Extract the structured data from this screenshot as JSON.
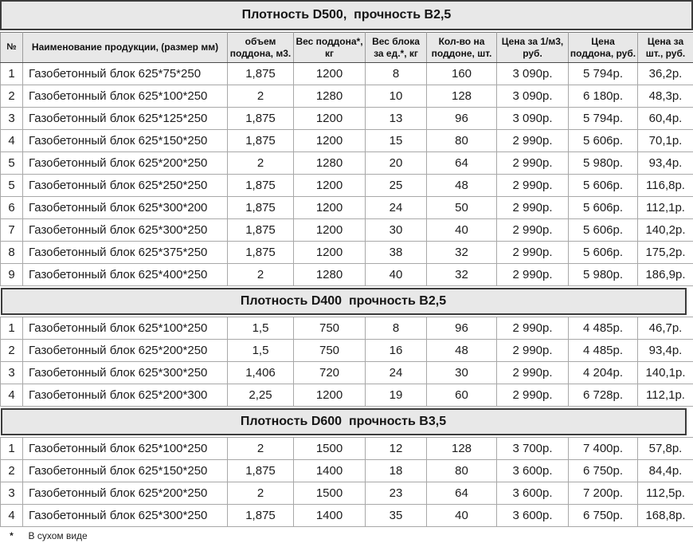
{
  "columns": [
    "№",
    "Наименование продукции, (размер мм)",
    "объем поддона, м3.",
    "Вес поддона*, кг",
    "Вес блока за ед.*, кг",
    "Кол-во на поддоне, шт.",
    "Цена за 1/м3, руб.",
    "Цена поддона, руб.",
    "Цена за шт., руб."
  ],
  "sections": [
    {
      "title": "Плотность D500,  прочность В2,5",
      "rows": [
        {
          "num": "1",
          "name": "Газобетонный блок 625*75*250",
          "volume": "1,875",
          "pallet_weight": "1200",
          "unit_weight": "8",
          "qty_per_pallet": "160",
          "price_m3": "3 090р.",
          "price_pallet": "5 794р.",
          "price_unit": "36,2р."
        },
        {
          "num": "2",
          "name": "Газобетонный блок 625*100*250",
          "volume": "2",
          "pallet_weight": "1280",
          "unit_weight": "10",
          "qty_per_pallet": "128",
          "price_m3": "3 090р.",
          "price_pallet": "6 180р.",
          "price_unit": "48,3р."
        },
        {
          "num": "3",
          "name": "Газобетонный блок 625*125*250",
          "volume": "1,875",
          "pallet_weight": "1200",
          "unit_weight": "13",
          "qty_per_pallet": "96",
          "price_m3": "3 090р.",
          "price_pallet": "5 794р.",
          "price_unit": "60,4р."
        },
        {
          "num": "4",
          "name": "Газобетонный блок 625*150*250",
          "volume": "1,875",
          "pallet_weight": "1200",
          "unit_weight": "15",
          "qty_per_pallet": "80",
          "price_m3": "2 990р.",
          "price_pallet": "5 606р.",
          "price_unit": "70,1р."
        },
        {
          "num": "5",
          "name": "Газобетонный блок 625*200*250",
          "volume": "2",
          "pallet_weight": "1280",
          "unit_weight": "20",
          "qty_per_pallet": "64",
          "price_m3": "2 990р.",
          "price_pallet": "5 980р.",
          "price_unit": "93,4р."
        },
        {
          "num": "5",
          "name": "Газобетонный блок 625*250*250",
          "volume": "1,875",
          "pallet_weight": "1200",
          "unit_weight": "25",
          "qty_per_pallet": "48",
          "price_m3": "2 990р.",
          "price_pallet": "5 606р.",
          "price_unit": "116,8р."
        },
        {
          "num": "6",
          "name": "Газобетонный блок 625*300*200",
          "volume": "1,875",
          "pallet_weight": "1200",
          "unit_weight": "24",
          "qty_per_pallet": "50",
          "price_m3": "2 990р.",
          "price_pallet": "5 606р.",
          "price_unit": "112,1р."
        },
        {
          "num": "7",
          "name": "Газобетонный блок 625*300*250",
          "volume": "1,875",
          "pallet_weight": "1200",
          "unit_weight": "30",
          "qty_per_pallet": "40",
          "price_m3": "2 990р.",
          "price_pallet": "5 606р.",
          "price_unit": "140,2р."
        },
        {
          "num": "8",
          "name": "Газобетонный блок 625*375*250",
          "volume": "1,875",
          "pallet_weight": "1200",
          "unit_weight": "38",
          "qty_per_pallet": "32",
          "price_m3": "2 990р.",
          "price_pallet": "5 606р.",
          "price_unit": "175,2р."
        },
        {
          "num": "9",
          "name": "Газобетонный блок 625*400*250",
          "volume": "2",
          "pallet_weight": "1280",
          "unit_weight": "40",
          "qty_per_pallet": "32",
          "price_m3": "2 990р.",
          "price_pallet": "5 980р.",
          "price_unit": "186,9р."
        }
      ]
    },
    {
      "title": "Плотность D400  прочность В2,5",
      "rows": [
        {
          "num": "1",
          "name": "Газобетонный блок 625*100*250",
          "volume": "1,5",
          "pallet_weight": "750",
          "unit_weight": "8",
          "qty_per_pallet": "96",
          "price_m3": "2 990р.",
          "price_pallet": "4 485р.",
          "price_unit": "46,7р."
        },
        {
          "num": "2",
          "name": "Газобетонный блок 625*200*250",
          "volume": "1,5",
          "pallet_weight": "750",
          "unit_weight": "16",
          "qty_per_pallet": "48",
          "price_m3": "2 990р.",
          "price_pallet": "4 485р.",
          "price_unit": "93,4р."
        },
        {
          "num": "3",
          "name": "Газобетонный блок 625*300*250",
          "volume": "1,406",
          "pallet_weight": "720",
          "unit_weight": "24",
          "qty_per_pallet": "30",
          "price_m3": "2 990р.",
          "price_pallet": "4 204р.",
          "price_unit": "140,1р."
        },
        {
          "num": "4",
          "name": "Газобетонный блок 625*200*300",
          "volume": "2,25",
          "pallet_weight": "1200",
          "unit_weight": "19",
          "qty_per_pallet": "60",
          "price_m3": "2 990р.",
          "price_pallet": "6 728р.",
          "price_unit": "112,1р."
        }
      ]
    },
    {
      "title": "Плотность D600  прочность В3,5",
      "rows": [
        {
          "num": "1",
          "name": "Газобетонный блок 625*100*250",
          "volume": "2",
          "pallet_weight": "1500",
          "unit_weight": "12",
          "qty_per_pallet": "128",
          "price_m3": "3 700р.",
          "price_pallet": "7 400р.",
          "price_unit": "57,8р."
        },
        {
          "num": "2",
          "name": "Газобетонный блок 625*150*250",
          "volume": "1,875",
          "pallet_weight": "1400",
          "unit_weight": "18",
          "qty_per_pallet": "80",
          "price_m3": "3 600р.",
          "price_pallet": "6 750р.",
          "price_unit": "84,4р."
        },
        {
          "num": "3",
          "name": "Газобетонный блок 625*200*250",
          "volume": "2",
          "pallet_weight": "1500",
          "unit_weight": "23",
          "qty_per_pallet": "64",
          "price_m3": "3 600р.",
          "price_pallet": "7 200р.",
          "price_unit": "112,5р."
        },
        {
          "num": "4",
          "name": "Газобетонный блок 625*300*250",
          "volume": "1,875",
          "pallet_weight": "1400",
          "unit_weight": "35",
          "qty_per_pallet": "40",
          "price_m3": "3 600р.",
          "price_pallet": "6 750р.",
          "price_unit": "168,8р."
        }
      ]
    }
  ],
  "footnote": {
    "marker": "*",
    "text": "В сухом виде"
  },
  "colors": {
    "band_bg": "#e8e8e8",
    "band_border": "#3c3c3c",
    "grid_line": "#a8a8a8"
  }
}
